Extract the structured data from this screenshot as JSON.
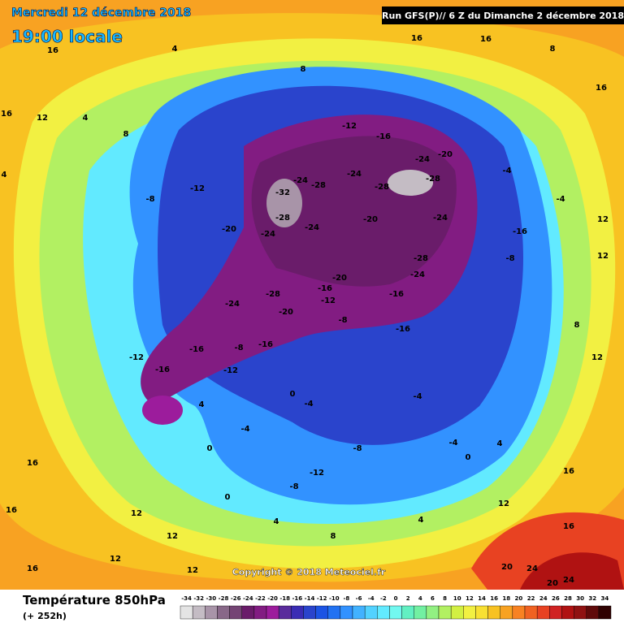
{
  "header": {
    "date": "Mercredi 12 décembre 2018",
    "time": "19:00 locale",
    "run": "Run GFS(P)// 6 Z du Dimanche 2 décembre 2018"
  },
  "copyright": "Copyright © 2018 Meteociel.fr",
  "footer": {
    "title": "Température 850hPa",
    "lead": "(+ 252h)"
  },
  "legend": {
    "ticks": [
      -34,
      -32,
      -30,
      -28,
      -26,
      -24,
      -22,
      -20,
      -18,
      -16,
      -14,
      -12,
      -10,
      -8,
      -6,
      -4,
      -2,
      0,
      2,
      4,
      6,
      8,
      10,
      12,
      14,
      16,
      18,
      20,
      22,
      24,
      26,
      28,
      30,
      32,
      34
    ],
    "colors": [
      "#e4e4e4",
      "#c4bcc4",
      "#a894a8",
      "#886888",
      "#744474",
      "#6a1c6a",
      "#821c82",
      "#9c1c9c",
      "#5a2c9c",
      "#3a2cb4",
      "#2a44cc",
      "#1c54e4",
      "#2272f2",
      "#3292ff",
      "#42b2ff",
      "#52d2ff",
      "#62eaff",
      "#72f8f0",
      "#62f0c2",
      "#72f0a2",
      "#92f082",
      "#b2f062",
      "#d2f042",
      "#f2f042",
      "#f8e032",
      "#f8c222",
      "#f8a222",
      "#f88222",
      "#f06222",
      "#e84222",
      "#d02222",
      "#b01212",
      "#901212",
      "#600a0a",
      "#300202"
    ]
  },
  "map_labels": [
    16,
    16,
    12,
    4,
    8,
    4,
    -8,
    -12,
    -20,
    -24,
    -28,
    -32,
    -24,
    -28,
    -12,
    -16,
    -24,
    -28,
    -24,
    -20,
    -28,
    -24,
    -20,
    -24,
    -28,
    -24,
    -20,
    -16,
    -16,
    -12,
    -20,
    -28,
    -24,
    -16,
    -8,
    -16,
    -12,
    -16,
    -12,
    -8,
    -16,
    -16,
    -8,
    -4,
    -4,
    12,
    12,
    12,
    8,
    4,
    0,
    -4,
    -4,
    -8,
    -12,
    -8,
    -4,
    0,
    -4,
    0,
    4,
    0,
    4,
    8,
    4,
    12,
    16,
    20,
    24,
    20,
    24,
    16,
    16,
    12,
    12,
    16,
    16,
    12,
    12,
    16,
    16,
    16,
    8,
    4,
    8
  ]
}
